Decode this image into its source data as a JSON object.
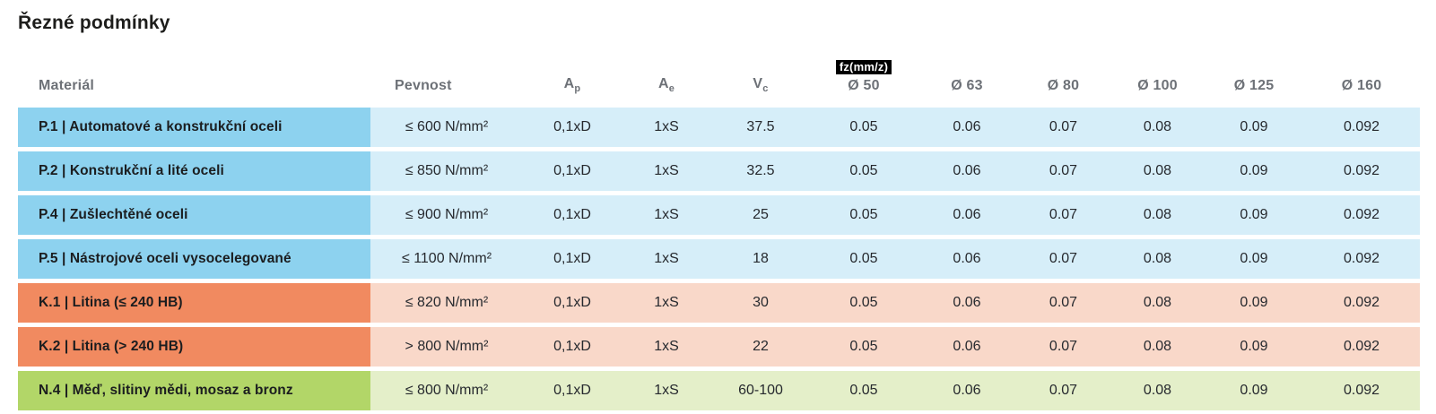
{
  "title": "Řezné podmínky",
  "table": {
    "headers": {
      "material": "Materiál",
      "pevnost": "Pevnost",
      "ap_base": "A",
      "ap_sub": "p",
      "ae_base": "A",
      "ae_sub": "e",
      "vc_base": "V",
      "vc_sub": "c",
      "fz_badge": "fz(mm/z)",
      "diameters": [
        "Ø 50",
        "Ø 63",
        "Ø 80",
        "Ø 100",
        "Ø 125",
        "Ø 160"
      ]
    },
    "rows": [
      {
        "group": "steel",
        "material": "P.1 | Automatové a konstrukční oceli",
        "pevnost": "≤ 600 N/mm²",
        "ap": "0,1xD",
        "ae": "1xS",
        "vc": "37.5",
        "fz": [
          "0.05",
          "0.06",
          "0.07",
          "0.08",
          "0.09",
          "0.092"
        ]
      },
      {
        "group": "steel",
        "material": "P.2 | Konstrukční a lité oceli",
        "pevnost": "≤ 850 N/mm²",
        "ap": "0,1xD",
        "ae": "1xS",
        "vc": "32.5",
        "fz": [
          "0.05",
          "0.06",
          "0.07",
          "0.08",
          "0.09",
          "0.092"
        ]
      },
      {
        "group": "steel",
        "material": "P.4 | Zušlechtěné oceli",
        "pevnost": "≤ 900 N/mm²",
        "ap": "0,1xD",
        "ae": "1xS",
        "vc": "25",
        "fz": [
          "0.05",
          "0.06",
          "0.07",
          "0.08",
          "0.09",
          "0.092"
        ]
      },
      {
        "group": "steel",
        "material": "P.5 | Nástrojové oceli vysocelegované",
        "pevnost": "≤ 1100 N/mm²",
        "ap": "0,1xD",
        "ae": "1xS",
        "vc": "18",
        "fz": [
          "0.05",
          "0.06",
          "0.07",
          "0.08",
          "0.09",
          "0.092"
        ]
      },
      {
        "group": "cast",
        "material": "K.1 | Litina (≤ 240 HB)",
        "pevnost": "≤ 820 N/mm²",
        "ap": "0,1xD",
        "ae": "1xS",
        "vc": "30",
        "fz": [
          "0.05",
          "0.06",
          "0.07",
          "0.08",
          "0.09",
          "0.092"
        ]
      },
      {
        "group": "cast",
        "material": "K.2 | Litina (> 240 HB)",
        "pevnost": "> 800 N/mm²",
        "ap": "0,1xD",
        "ae": "1xS",
        "vc": "22",
        "fz": [
          "0.05",
          "0.06",
          "0.07",
          "0.08",
          "0.09",
          "0.092"
        ]
      },
      {
        "group": "nonferrous",
        "material": "N.4 | Měď, slitiny mědi, mosaz a bronz",
        "pevnost": "≤ 800 N/mm²",
        "ap": "0,1xD",
        "ae": "1xS",
        "vc": "60-100",
        "fz": [
          "0.05",
          "0.06",
          "0.07",
          "0.08",
          "0.09",
          "0.092"
        ]
      }
    ],
    "colors": {
      "steel_label": "#8dd2ef",
      "steel_row": "#d6eef9",
      "cast_label": "#f18a60",
      "cast_row": "#f9d8c9",
      "nonferrous_label": "#b2d668",
      "nonferrous_row": "#e4efc9",
      "badge_bg": "#000000",
      "badge_text": "#ffffff",
      "header_text": "#6d7177",
      "body_text": "#26292e"
    }
  }
}
